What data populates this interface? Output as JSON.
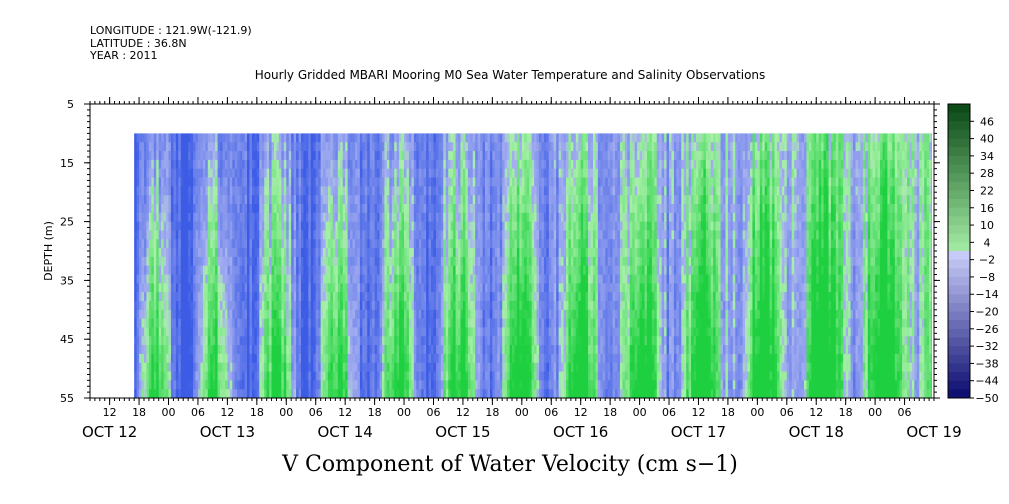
{
  "meta": {
    "longitude": "LONGITUDE : 121.9W(-121.9)",
    "latitude": "LATITUDE : 36.8N",
    "year": "YEAR : 2011"
  },
  "chart_data": {
    "type": "heatmap",
    "title": "Hourly Gridded MBARI Mooring M0 Sea Water Temperature and Salinity Observations",
    "caption": "V Component of Water Velocity (cm s−1)",
    "ylabel": "DEPTH (m)",
    "y_ticks": [
      "5",
      "15",
      "25",
      "35",
      "45",
      "55"
    ],
    "ylim": [
      5,
      55
    ],
    "y_inverted": true,
    "data_depth_range": [
      10,
      55
    ],
    "x_start": "2011-10-12 08:00",
    "x_end": "2011-10-19 12:00",
    "data_start": "2011-10-12 17:00",
    "x_hour_labels": [
      "12",
      "18",
      "00",
      "06",
      "12",
      "18",
      "00",
      "06",
      "12",
      "18",
      "00",
      "06",
      "12",
      "18",
      "00",
      "06",
      "12",
      "18",
      "00",
      "06",
      "12",
      "18",
      "00",
      "06",
      "12",
      "18",
      "00",
      "06"
    ],
    "x_day_labels": [
      "OCT 12",
      "OCT 13",
      "OCT 14",
      "OCT 15",
      "OCT 16",
      "OCT 17",
      "OCT 18",
      "OCT 19"
    ],
    "colorbar_labels": [
      "46",
      "40",
      "34",
      "28",
      "22",
      "16",
      "10",
      "4",
      "−2",
      "−8",
      "−14",
      "−20",
      "−26",
      "−32",
      "−38",
      "−44",
      "−50"
    ],
    "colorbar_range": [
      -50,
      52
    ],
    "color_negative": "#3c5ce6",
    "color_positive": "#1ed040",
    "color_zero": "#a8f0a8",
    "color_missing": "#ffffff"
  }
}
